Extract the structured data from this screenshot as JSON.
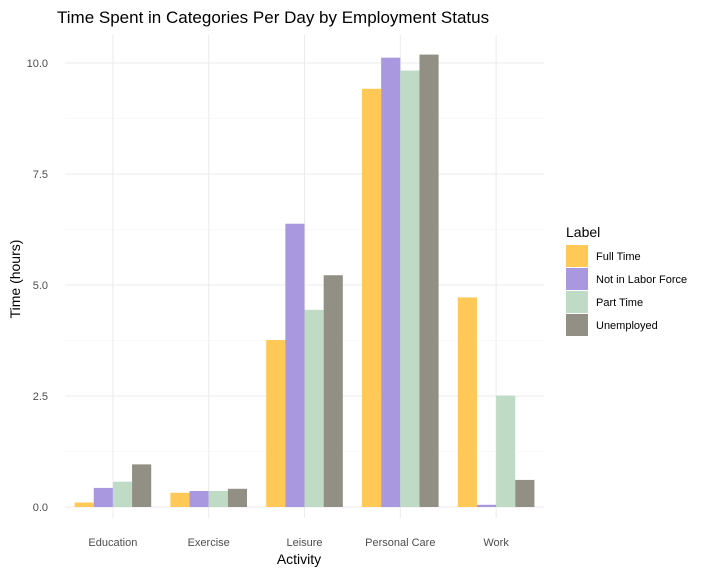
{
  "chart_data": {
    "type": "bar",
    "title": "Time Spent in Categories Per Day by Employment Status",
    "xlabel": "Activity",
    "ylabel": "Time (hours)",
    "categories": [
      "Education",
      "Exercise",
      "Leisure",
      "Personal Care",
      "Work"
    ],
    "ylim": [
      0,
      10.55
    ],
    "yticks": [
      0,
      2.5,
      5,
      7.5,
      10
    ],
    "ytick_labels": [
      "0.0",
      "2.5",
      "5.0",
      "7.5",
      "10.0"
    ],
    "grid": true,
    "legend": {
      "title": "Label",
      "position": "right"
    },
    "series": [
      {
        "name": "Full Time",
        "color": "#FFC857",
        "values": [
          0.1,
          0.32,
          3.76,
          9.42,
          4.72
        ]
      },
      {
        "name": "Not in Labor Force",
        "color": "#A997DF",
        "values": [
          0.43,
          0.36,
          6.38,
          10.12,
          0.05
        ]
      },
      {
        "name": "Part Time",
        "color": "#BFDBC6",
        "values": [
          0.57,
          0.36,
          4.44,
          9.83,
          2.51
        ]
      },
      {
        "name": "Unemployed",
        "color": "#929084",
        "values": [
          0.96,
          0.41,
          5.22,
          10.19,
          0.61
        ]
      }
    ]
  }
}
